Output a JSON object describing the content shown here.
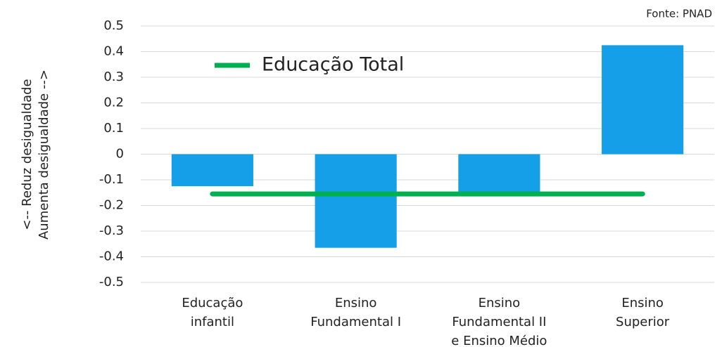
{
  "chart_data": {
    "type": "bar",
    "source": "Fonte: PNAD",
    "y_label": [
      "<-- Reduz desigualdade",
      "Aumenta desigualdade -->"
    ],
    "categories": [
      [
        "Educação",
        "infantil"
      ],
      [
        "Ensino",
        "Fundamental I"
      ],
      [
        "Ensino",
        "Fundamental II",
        "e Ensino Médio"
      ],
      [
        "Ensino",
        "Superior"
      ]
    ],
    "values": [
      -0.125,
      -0.365,
      -0.15,
      0.425
    ],
    "color": "#149fe8",
    "lines": [
      {
        "name": "Educação Total",
        "color": "#00b050",
        "values": [
          -0.155,
          -0.155,
          -0.155,
          -0.155
        ]
      }
    ],
    "ylim": [
      -0.5,
      0.5
    ],
    "yticks": [
      -0.5,
      -0.4,
      -0.3,
      -0.2,
      -0.1,
      0,
      0.1,
      0.2,
      0.3,
      0.4,
      0.5
    ],
    "grid": true,
    "legend": "top-left"
  }
}
